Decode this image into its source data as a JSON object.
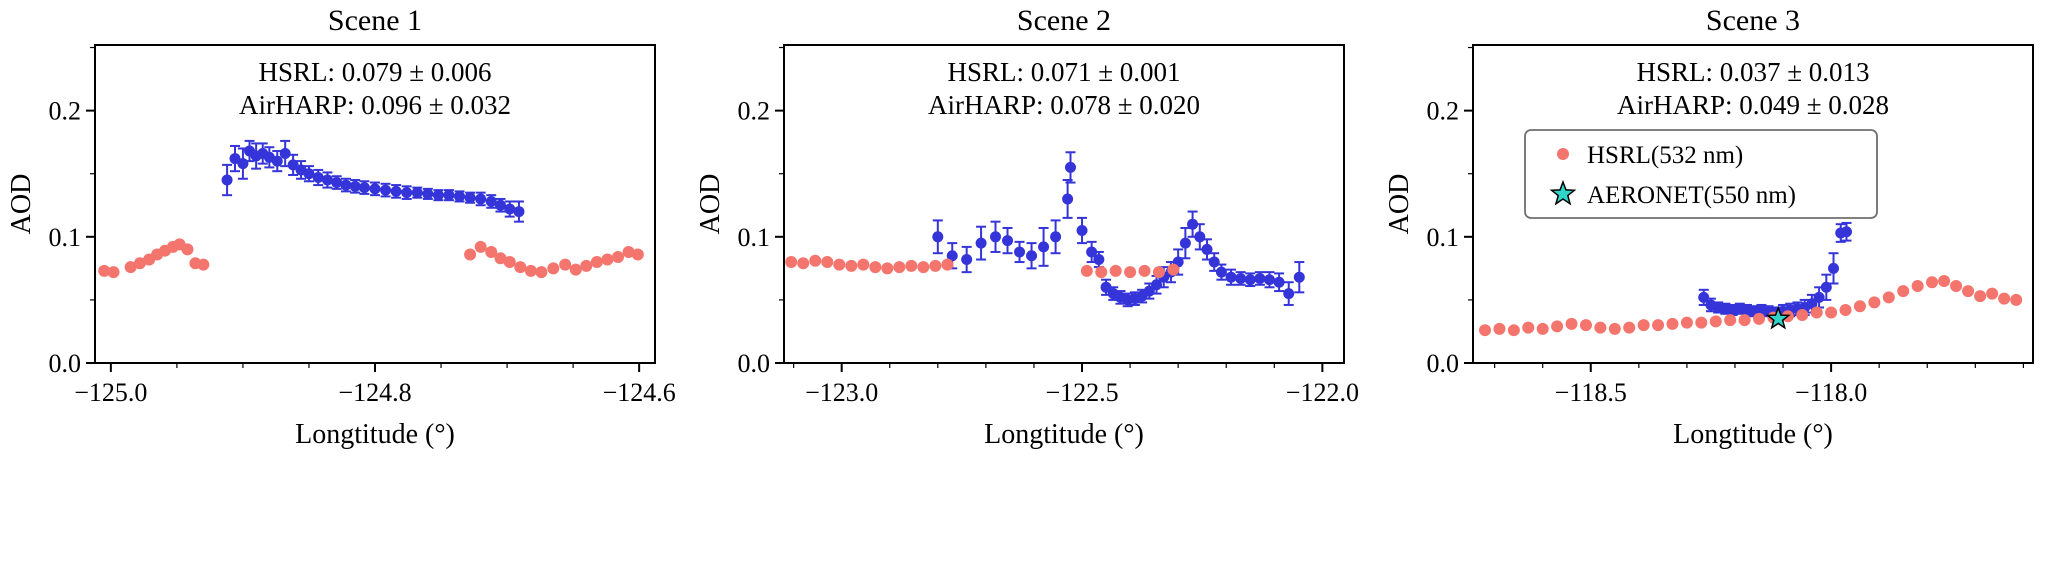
{
  "figure": {
    "colors": {
      "hsrl": "#f4756d",
      "airharp": "#3434d9",
      "aeronet_fill": "#2fd5c8",
      "aeronet_edge": "#000000",
      "axis": "#000000",
      "legend_border": "#6f6f6f",
      "background": "#ffffff"
    }
  },
  "chart_data": [
    {
      "type": "scatter",
      "title": "Scene 1",
      "annotation_lines": [
        "HSRL: 0.079 ± 0.006",
        "AirHARP: 0.096 ± 0.032"
      ],
      "xlabel": "Longtitude (°)",
      "ylabel": "AOD",
      "xlim": [
        -125.012,
        -124.588
      ],
      "ylim": [
        0,
        0.252
      ],
      "xticks": [
        -125.0,
        -124.8,
        -124.6
      ],
      "xtick_labels": [
        "−125.0",
        "−124.8",
        "−124.6"
      ],
      "yticks": [
        0,
        0.1,
        0.2
      ],
      "ytick_labels": [
        "0.0",
        "0.1",
        "0.2"
      ],
      "x_minor_step": 0.05,
      "y_minor_step": 0.05,
      "series": [
        {
          "name": "AirHARP",
          "marker": "dot_errorbar",
          "color_key": "airharp",
          "points": [
            [
              -124.912,
              0.145,
              0.012
            ],
            [
              -124.906,
              0.162,
              0.01
            ],
            [
              -124.9,
              0.158,
              0.012
            ],
            [
              -124.895,
              0.168,
              0.008
            ],
            [
              -124.89,
              0.164,
              0.01
            ],
            [
              -124.885,
              0.166,
              0.008
            ],
            [
              -124.88,
              0.163,
              0.008
            ],
            [
              -124.874,
              0.16,
              0.008
            ],
            [
              -124.868,
              0.166,
              0.01
            ],
            [
              -124.862,
              0.157,
              0.008
            ],
            [
              -124.856,
              0.153,
              0.007
            ],
            [
              -124.85,
              0.15,
              0.006
            ],
            [
              -124.843,
              0.147,
              0.006
            ],
            [
              -124.836,
              0.145,
              0.006
            ],
            [
              -124.829,
              0.143,
              0.005
            ],
            [
              -124.822,
              0.141,
              0.005
            ],
            [
              -124.815,
              0.14,
              0.005
            ],
            [
              -124.808,
              0.139,
              0.005
            ],
            [
              -124.8,
              0.138,
              0.005
            ],
            [
              -124.792,
              0.137,
              0.005
            ],
            [
              -124.784,
              0.136,
              0.005
            ],
            [
              -124.776,
              0.135,
              0.005
            ],
            [
              -124.768,
              0.135,
              0.004
            ],
            [
              -124.76,
              0.134,
              0.004
            ],
            [
              -124.752,
              0.133,
              0.004
            ],
            [
              -124.744,
              0.133,
              0.004
            ],
            [
              -124.736,
              0.132,
              0.004
            ],
            [
              -124.728,
              0.131,
              0.004
            ],
            [
              -124.72,
              0.13,
              0.005
            ],
            [
              -124.712,
              0.128,
              0.005
            ],
            [
              -124.705,
              0.125,
              0.005
            ],
            [
              -124.698,
              0.122,
              0.006
            ],
            [
              -124.691,
              0.12,
              0.008
            ]
          ]
        },
        {
          "name": "HSRL(532 nm)",
          "marker": "dot",
          "color_key": "hsrl",
          "points": [
            [
              -125.005,
              0.073
            ],
            [
              -124.998,
              0.072
            ],
            [
              -124.985,
              0.076
            ],
            [
              -124.978,
              0.079
            ],
            [
              -124.971,
              0.082
            ],
            [
              -124.965,
              0.086
            ],
            [
              -124.959,
              0.089
            ],
            [
              -124.953,
              0.092
            ],
            [
              -124.948,
              0.094
            ],
            [
              -124.942,
              0.09
            ],
            [
              -124.936,
              0.079
            ],
            [
              -124.93,
              0.078
            ],
            [
              -124.728,
              0.086
            ],
            [
              -124.72,
              0.092
            ],
            [
              -124.712,
              0.088
            ],
            [
              -124.705,
              0.083
            ],
            [
              -124.698,
              0.08
            ],
            [
              -124.69,
              0.076
            ],
            [
              -124.682,
              0.073
            ],
            [
              -124.674,
              0.072
            ],
            [
              -124.665,
              0.075
            ],
            [
              -124.656,
              0.078
            ],
            [
              -124.648,
              0.074
            ],
            [
              -124.64,
              0.077
            ],
            [
              -124.632,
              0.08
            ],
            [
              -124.624,
              0.082
            ],
            [
              -124.616,
              0.084
            ],
            [
              -124.608,
              0.088
            ],
            [
              -124.601,
              0.086
            ]
          ]
        }
      ]
    },
    {
      "type": "scatter",
      "title": "Scene 2",
      "annotation_lines": [
        "HSRL: 0.071 ± 0.001",
        "AirHARP: 0.078 ± 0.020"
      ],
      "xlabel": "Longtitude (°)",
      "ylabel": "AOD",
      "xlim": [
        -123.12,
        -121.955
      ],
      "ylim": [
        0,
        0.252
      ],
      "xticks": [
        -123.0,
        -122.5,
        -122.0
      ],
      "xtick_labels": [
        "−123.0",
        "−122.5",
        "−122.0"
      ],
      "yticks": [
        0,
        0.1,
        0.2
      ],
      "ytick_labels": [
        "0.0",
        "0.1",
        "0.2"
      ],
      "x_minor_step": 0.1,
      "y_minor_step": 0.05,
      "series": [
        {
          "name": "AirHARP",
          "marker": "dot_errorbar",
          "color_key": "airharp",
          "points": [
            [
              -122.8,
              0.1,
              0.013
            ],
            [
              -122.77,
              0.085,
              0.01
            ],
            [
              -122.74,
              0.082,
              0.01
            ],
            [
              -122.71,
              0.095,
              0.013
            ],
            [
              -122.68,
              0.1,
              0.012
            ],
            [
              -122.655,
              0.097,
              0.01
            ],
            [
              -122.63,
              0.088,
              0.008
            ],
            [
              -122.605,
              0.085,
              0.01
            ],
            [
              -122.58,
              0.092,
              0.015
            ],
            [
              -122.555,
              0.1,
              0.013
            ],
            [
              -122.53,
              0.13,
              0.015
            ],
            [
              -122.524,
              0.155,
              0.012
            ],
            [
              -122.5,
              0.105,
              0.01
            ],
            [
              -122.48,
              0.088,
              0.008
            ],
            [
              -122.465,
              0.082,
              0.006
            ],
            [
              -122.45,
              0.06,
              0.006
            ],
            [
              -122.435,
              0.055,
              0.005
            ],
            [
              -122.42,
              0.052,
              0.005
            ],
            [
              -122.405,
              0.05,
              0.005
            ],
            [
              -122.39,
              0.051,
              0.005
            ],
            [
              -122.375,
              0.053,
              0.005
            ],
            [
              -122.36,
              0.057,
              0.006
            ],
            [
              -122.345,
              0.062,
              0.007
            ],
            [
              -122.33,
              0.068,
              0.008
            ],
            [
              -122.315,
              0.072,
              0.008
            ],
            [
              -122.3,
              0.08,
              0.01
            ],
            [
              -122.285,
              0.095,
              0.012
            ],
            [
              -122.27,
              0.11,
              0.01
            ],
            [
              -122.255,
              0.1,
              0.01
            ],
            [
              -122.24,
              0.09,
              0.008
            ],
            [
              -122.225,
              0.08,
              0.007
            ],
            [
              -122.21,
              0.072,
              0.006
            ],
            [
              -122.19,
              0.068,
              0.006
            ],
            [
              -122.17,
              0.067,
              0.005
            ],
            [
              -122.15,
              0.066,
              0.005
            ],
            [
              -122.13,
              0.067,
              0.005
            ],
            [
              -122.11,
              0.066,
              0.006
            ],
            [
              -122.09,
              0.064,
              0.007
            ],
            [
              -122.07,
              0.055,
              0.009
            ],
            [
              -122.048,
              0.068,
              0.012
            ]
          ]
        },
        {
          "name": "HSRL(532 nm)",
          "marker": "dot",
          "color_key": "hsrl",
          "points": [
            [
              -123.105,
              0.08
            ],
            [
              -123.08,
              0.079
            ],
            [
              -123.055,
              0.081
            ],
            [
              -123.03,
              0.08
            ],
            [
              -123.005,
              0.078
            ],
            [
              -122.98,
              0.077
            ],
            [
              -122.955,
              0.078
            ],
            [
              -122.93,
              0.076
            ],
            [
              -122.905,
              0.075
            ],
            [
              -122.88,
              0.076
            ],
            [
              -122.855,
              0.077
            ],
            [
              -122.83,
              0.076
            ],
            [
              -122.805,
              0.077
            ],
            [
              -122.78,
              0.078
            ],
            [
              -122.49,
              0.073
            ],
            [
              -122.46,
              0.072
            ],
            [
              -122.43,
              0.073
            ],
            [
              -122.4,
              0.072
            ],
            [
              -122.37,
              0.073
            ],
            [
              -122.34,
              0.072
            ],
            [
              -122.31,
              0.074
            ]
          ]
        }
      ]
    },
    {
      "type": "scatter",
      "title": "Scene 3",
      "annotation_lines": [
        "HSRL: 0.037 ± 0.013",
        "AirHARP: 0.049 ± 0.028"
      ],
      "xlabel": "Longtitude (°)",
      "ylabel": "AOD",
      "xlim": [
        -118.745,
        -117.58
      ],
      "ylim": [
        0,
        0.252
      ],
      "xticks": [
        -118.5,
        -118.0
      ],
      "xtick_labels": [
        "−118.5",
        "−118.0"
      ],
      "yticks": [
        0,
        0.1,
        0.2
      ],
      "ytick_labels": [
        "0.0",
        "0.1",
        "0.2"
      ],
      "x_minor_step": 0.1,
      "y_minor_step": 0.05,
      "legend": {
        "entries": [
          {
            "marker": "dot",
            "color_key": "hsrl",
            "label": "HSRL(532 nm)"
          },
          {
            "marker": "star",
            "color_key": "aeronet_fill",
            "label": "AERONET(550 nm)"
          }
        ]
      },
      "series": [
        {
          "name": "AirHARP",
          "marker": "dot_errorbar",
          "color_key": "airharp",
          "points": [
            [
              -118.265,
              0.052,
              0.006
            ],
            [
              -118.25,
              0.046,
              0.005
            ],
            [
              -118.235,
              0.044,
              0.004
            ],
            [
              -118.22,
              0.043,
              0.004
            ],
            [
              -118.205,
              0.042,
              0.004
            ],
            [
              -118.19,
              0.043,
              0.004
            ],
            [
              -118.175,
              0.042,
              0.004
            ],
            [
              -118.16,
              0.041,
              0.004
            ],
            [
              -118.145,
              0.042,
              0.004
            ],
            [
              -118.13,
              0.041,
              0.004
            ],
            [
              -118.115,
              0.04,
              0.004
            ],
            [
              -118.1,
              0.041,
              0.005
            ],
            [
              -118.085,
              0.042,
              0.005
            ],
            [
              -118.07,
              0.043,
              0.005
            ],
            [
              -118.055,
              0.044,
              0.006
            ],
            [
              -118.04,
              0.047,
              0.007
            ],
            [
              -118.025,
              0.052,
              0.008
            ],
            [
              -118.01,
              0.06,
              0.01
            ],
            [
              -117.995,
              0.075,
              0.012
            ],
            [
              -117.98,
              0.103,
              0.007
            ],
            [
              -117.968,
              0.104,
              0.007
            ]
          ]
        },
        {
          "name": "HSRL(532 nm)",
          "marker": "dot",
          "color_key": "hsrl",
          "points": [
            [
              -118.72,
              0.026
            ],
            [
              -118.69,
              0.027
            ],
            [
              -118.66,
              0.026
            ],
            [
              -118.63,
              0.028
            ],
            [
              -118.6,
              0.027
            ],
            [
              -118.57,
              0.029
            ],
            [
              -118.54,
              0.031
            ],
            [
              -118.51,
              0.03
            ],
            [
              -118.48,
              0.028
            ],
            [
              -118.45,
              0.027
            ],
            [
              -118.42,
              0.028
            ],
            [
              -118.39,
              0.03
            ],
            [
              -118.36,
              0.03
            ],
            [
              -118.33,
              0.031
            ],
            [
              -118.3,
              0.032
            ],
            [
              -118.27,
              0.032
            ],
            [
              -118.24,
              0.033
            ],
            [
              -118.21,
              0.034
            ],
            [
              -118.18,
              0.034
            ],
            [
              -118.15,
              0.035
            ],
            [
              -118.12,
              0.036
            ],
            [
              -118.09,
              0.037
            ],
            [
              -118.06,
              0.038
            ],
            [
              -118.03,
              0.04
            ],
            [
              -118.0,
              0.04
            ],
            [
              -117.97,
              0.042
            ],
            [
              -117.94,
              0.045
            ],
            [
              -117.91,
              0.048
            ],
            [
              -117.88,
              0.052
            ],
            [
              -117.85,
              0.057
            ],
            [
              -117.82,
              0.061
            ],
            [
              -117.79,
              0.064
            ],
            [
              -117.765,
              0.065
            ],
            [
              -117.74,
              0.061
            ],
            [
              -117.715,
              0.057
            ],
            [
              -117.69,
              0.053
            ],
            [
              -117.665,
              0.055
            ],
            [
              -117.64,
              0.051
            ],
            [
              -117.615,
              0.05
            ]
          ]
        },
        {
          "name": "AERONET(550 nm)",
          "marker": "star",
          "color_key": "aeronet_fill",
          "points": [
            [
              -118.11,
              0.035
            ]
          ]
        }
      ]
    }
  ]
}
